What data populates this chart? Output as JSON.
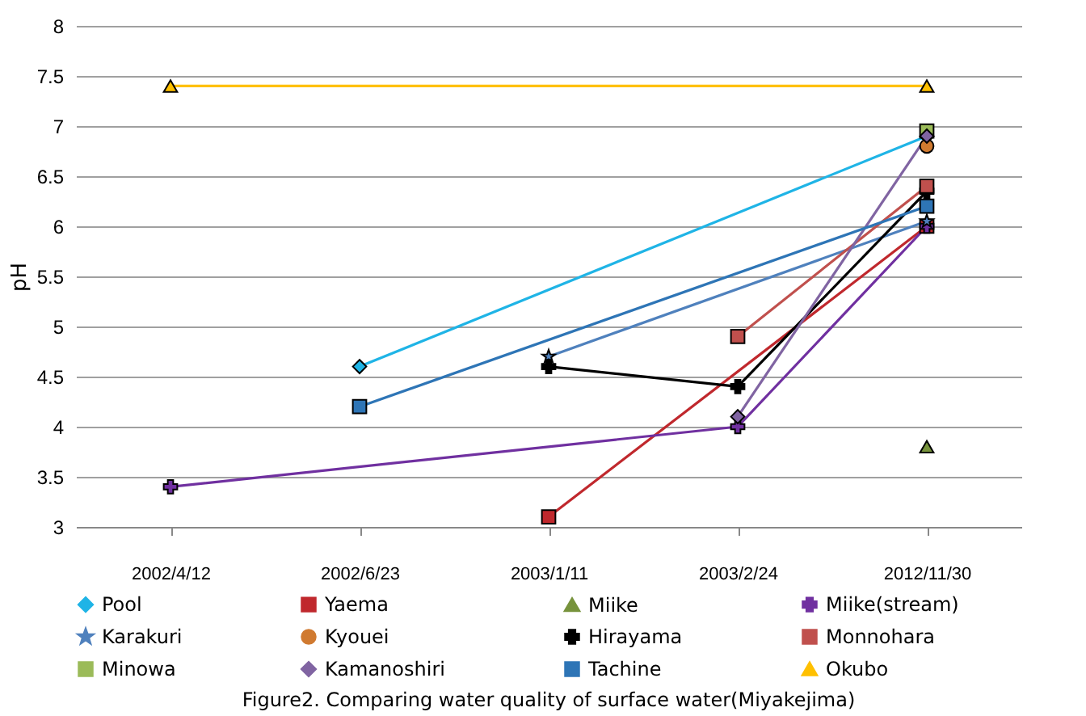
{
  "chart_data": {
    "type": "line",
    "title": "Figure2. Comparing water quality of surface water(Miyakejima)",
    "ylabel": "pH",
    "categories": [
      "2002/4/12",
      "2002/6/23",
      "2003/1/11",
      "2003/2/24",
      "2012/11/30"
    ],
    "ylim": [
      3,
      8
    ],
    "yticks": [
      3,
      3.5,
      4,
      4.5,
      5,
      5.5,
      6,
      6.5,
      7,
      7.5,
      8
    ],
    "grid": "y",
    "legend": "bottom",
    "series": [
      {
        "name": "Pool",
        "color": "#1fb4e6",
        "marker": "diamond",
        "values": [
          null,
          4.6,
          null,
          null,
          6.9
        ]
      },
      {
        "name": "Yaema",
        "color": "#c0282d",
        "marker": "square",
        "values": [
          null,
          null,
          3.1,
          null,
          6.0
        ]
      },
      {
        "name": "Miike",
        "color": "#77933c",
        "marker": "triangle",
        "values": [
          null,
          null,
          null,
          null,
          3.8
        ]
      },
      {
        "name": "Miike(stream)",
        "color": "#7030a0",
        "marker": "cross",
        "values": [
          3.4,
          null,
          null,
          4.0,
          6.0
        ]
      },
      {
        "name": "Karakuri",
        "color": "#4f81bd",
        "marker": "star",
        "values": [
          null,
          null,
          4.7,
          null,
          6.05
        ]
      },
      {
        "name": "Kyouei",
        "color": "#d07a30",
        "marker": "circle",
        "values": [
          null,
          null,
          null,
          null,
          6.8
        ]
      },
      {
        "name": "Hirayama",
        "color": "#000000",
        "marker": "cross",
        "values": [
          null,
          null,
          4.6,
          4.4,
          6.35
        ]
      },
      {
        "name": "Monnohara",
        "color": "#c0504d",
        "marker": "square",
        "values": [
          null,
          null,
          null,
          4.9,
          6.4
        ]
      },
      {
        "name": "Minowa",
        "color": "#9bbb59",
        "marker": "square",
        "values": [
          null,
          null,
          null,
          null,
          6.95
        ]
      },
      {
        "name": "Kamanoshiri",
        "color": "#8064a2",
        "marker": "diamond",
        "values": [
          null,
          null,
          null,
          4.1,
          6.9
        ]
      },
      {
        "name": "Tachine",
        "color": "#2e75b6",
        "marker": "square",
        "values": [
          null,
          4.2,
          null,
          null,
          6.2
        ]
      },
      {
        "name": "Okubo",
        "color": "#ffc000",
        "marker": "triangle",
        "values": [
          7.4,
          null,
          null,
          null,
          7.4
        ]
      }
    ]
  }
}
